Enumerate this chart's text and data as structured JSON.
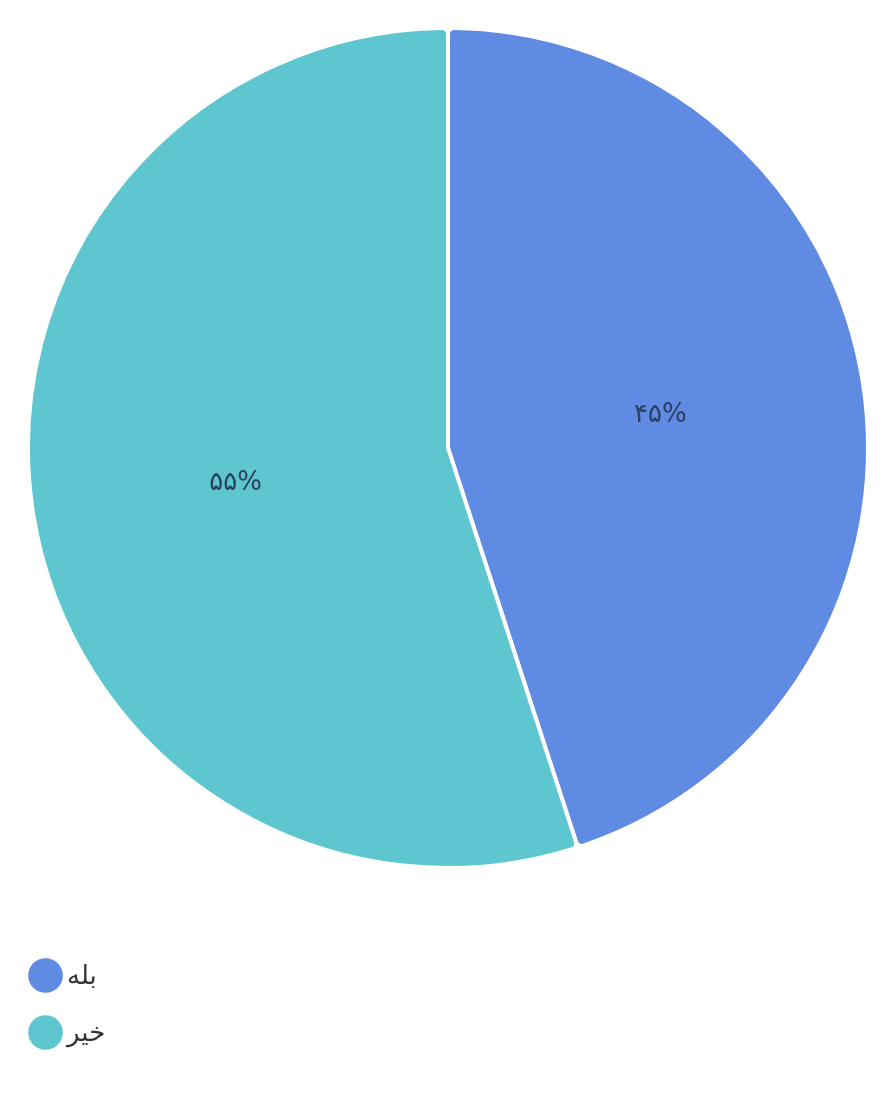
{
  "chart_data": {
    "type": "pie",
    "categories": [
      "بله",
      "خیر"
    ],
    "values": [
      45,
      55
    ],
    "colors": [
      "#5f8be2",
      "#5ec6cf"
    ],
    "value_labels": [
      "۴۵%",
      "۵۵%"
    ],
    "legend": "bottom"
  }
}
